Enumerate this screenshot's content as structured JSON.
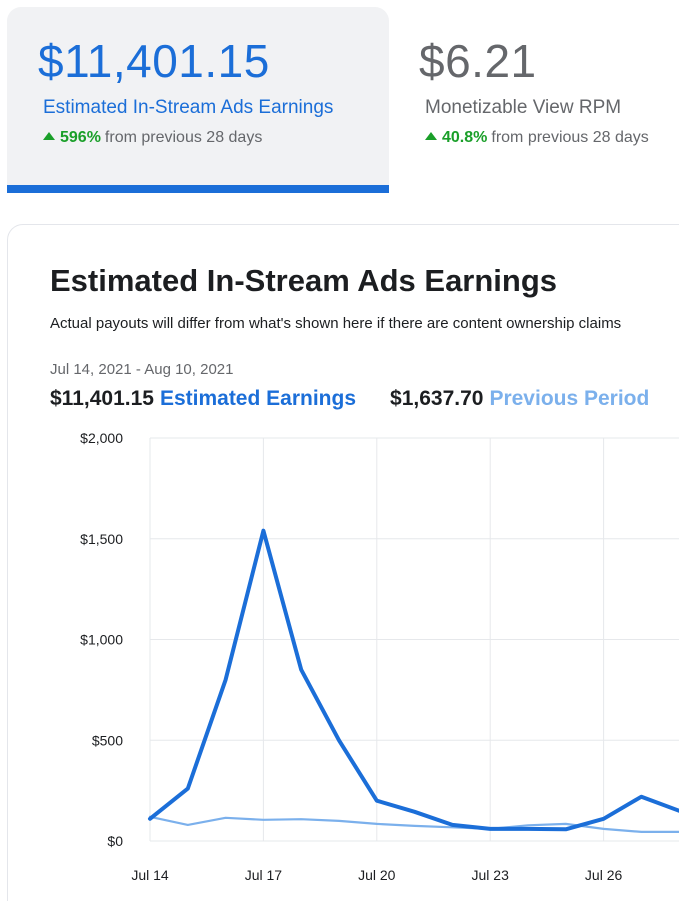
{
  "kpis": [
    {
      "value": "$11,401.15",
      "label": "Estimated In-Stream Ads Earnings",
      "delta": "596%",
      "delta_text": "from previous 28 days"
    },
    {
      "value": "$6.21",
      "label": "Monetizable View RPM",
      "delta": "40.8%",
      "delta_text": "from previous 28 days"
    }
  ],
  "card": {
    "title": "Estimated In-Stream Ads Earnings",
    "subtitle": "Actual payouts will differ from what's shown here if there are content ownership claims",
    "date_range": "Jul 14, 2021 - Aug 10, 2021",
    "current_total": "$11,401.15",
    "current_label": "Estimated Earnings",
    "previous_total": "$1,637.70",
    "previous_label": "Previous Period"
  },
  "colors": {
    "current": "#1b6ed8",
    "previous": "#7bb0ec",
    "grid": "#e6e8eb",
    "positive": "#1a9f29"
  },
  "chart_data": {
    "type": "line",
    "title": "",
    "xlabel": "",
    "ylabel": "",
    "x": [
      "Jul 14",
      "Jul 15",
      "Jul 16",
      "Jul 17",
      "Jul 18",
      "Jul 19",
      "Jul 20",
      "Jul 21",
      "Jul 22",
      "Jul 23",
      "Jul 24",
      "Jul 25",
      "Jul 26",
      "Jul 27",
      "Jul 28"
    ],
    "x_tick_labels": [
      "Jul 14",
      "Jul 17",
      "Jul 20",
      "Jul 23",
      "Jul 26"
    ],
    "y_tick_labels": [
      "$2,000",
      "$1,500",
      "$1,000",
      "$500",
      "$0"
    ],
    "y_ticks": [
      2000,
      1500,
      1000,
      500,
      0
    ],
    "ylim": [
      0,
      2000
    ],
    "grid": true,
    "series": [
      {
        "name": "Estimated Earnings",
        "values": [
          110,
          260,
          800,
          1540,
          850,
          500,
          200,
          145,
          80,
          60,
          60,
          58,
          110,
          220,
          150
        ]
      },
      {
        "name": "Previous Period",
        "values": [
          120,
          80,
          115,
          105,
          108,
          100,
          85,
          75,
          68,
          60,
          78,
          85,
          60,
          45,
          45
        ]
      }
    ]
  }
}
